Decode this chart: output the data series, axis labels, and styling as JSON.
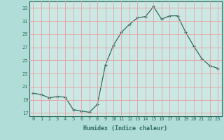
{
  "x": [
    0,
    1,
    2,
    3,
    4,
    5,
    6,
    7,
    8,
    9,
    10,
    11,
    12,
    13,
    14,
    15,
    16,
    17,
    18,
    19,
    20,
    21,
    22,
    23
  ],
  "y": [
    20.0,
    19.8,
    19.3,
    19.5,
    19.4,
    17.5,
    17.3,
    17.1,
    18.3,
    24.3,
    27.3,
    29.3,
    30.5,
    31.5,
    31.7,
    33.2,
    31.3,
    31.8,
    31.8,
    29.3,
    27.2,
    25.3,
    24.2,
    23.8
  ],
  "line_color": "#2e6b5e",
  "marker": "+",
  "marker_size": 3,
  "background_color": "#b0ddd8",
  "plot_bg_color": "#cce8e4",
  "grid_color": "#e8a0a0",
  "xlabel": "Humidex (Indice chaleur)",
  "ylabel_ticks": [
    17,
    19,
    21,
    23,
    25,
    27,
    29,
    31,
    33
  ],
  "xlim": [
    -0.5,
    23.5
  ],
  "ylim": [
    16.5,
    34.0
  ],
  "xticks": [
    0,
    1,
    2,
    3,
    4,
    5,
    6,
    7,
    8,
    9,
    10,
    11,
    12,
    13,
    14,
    15,
    16,
    17,
    18,
    19,
    20,
    21,
    22,
    23
  ]
}
